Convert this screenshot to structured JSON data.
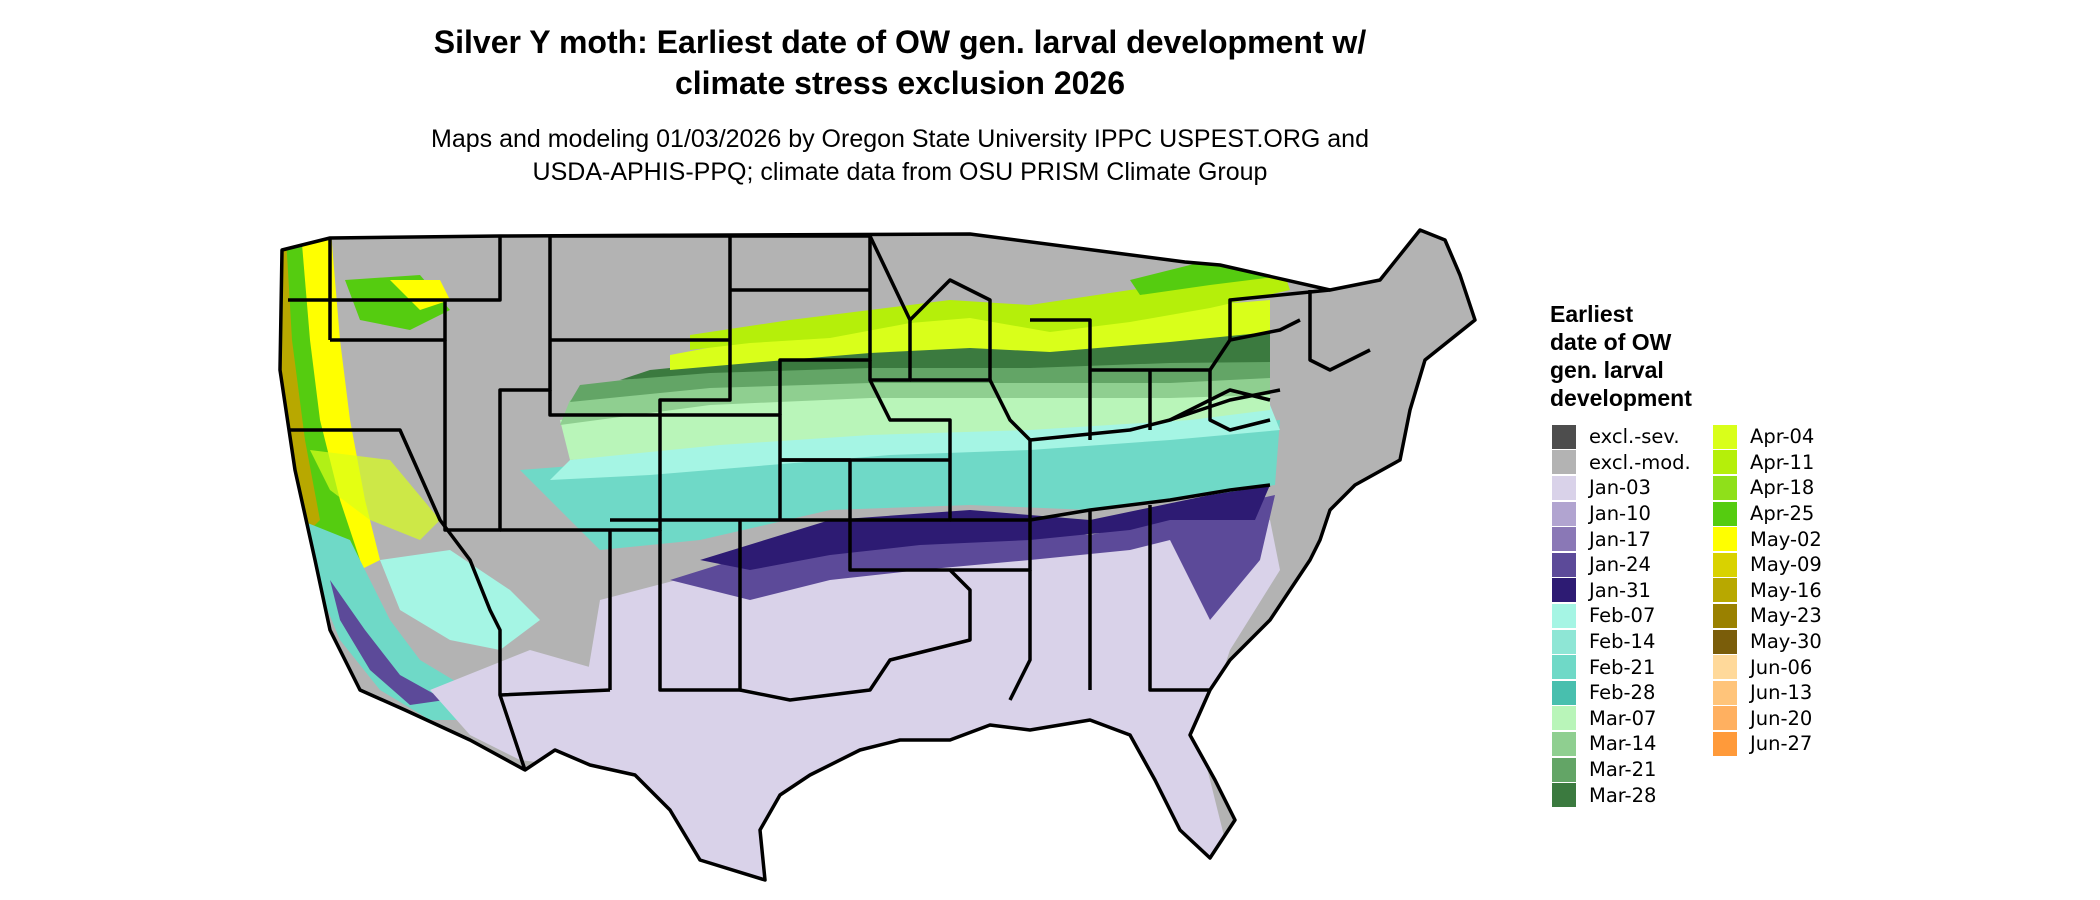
{
  "title": {
    "line1": "Silver Y moth: Earliest date of OW gen. larval development w/",
    "line2": "climate stress exclusion 2026"
  },
  "subtitle": {
    "line1": "Maps and modeling 01/03/2026 by Oregon State University IPPC USPEST.ORG and",
    "line2": "USDA-APHIS-PPQ; climate data from OSU PRISM Climate Group"
  },
  "legend": {
    "title_lines": [
      "Earliest",
      "date of OW",
      "gen. larval",
      "development"
    ],
    "items": [
      {
        "label": "excl.-sev.",
        "color": "#4d4d4d"
      },
      {
        "label": "excl.-mod.",
        "color": "#b3b3b3"
      },
      {
        "label": "Jan-03",
        "color": "#d9d2e9"
      },
      {
        "label": "Jan-10",
        "color": "#b1a4d0"
      },
      {
        "label": "Jan-17",
        "color": "#8a78b6"
      },
      {
        "label": "Jan-24",
        "color": "#5c4a99"
      },
      {
        "label": "Jan-31",
        "color": "#2d1b73"
      },
      {
        "label": "Feb-07",
        "color": "#a5f5e4"
      },
      {
        "label": "Feb-14",
        "color": "#8ee6d5"
      },
      {
        "label": "Feb-21",
        "color": "#6fd9c7"
      },
      {
        "label": "Feb-28",
        "color": "#48bfae"
      },
      {
        "label": "Mar-07",
        "color": "#b9f5b9"
      },
      {
        "label": "Mar-14",
        "color": "#8fcf90"
      },
      {
        "label": "Mar-21",
        "color": "#63a566"
      },
      {
        "label": "Mar-28",
        "color": "#3b7a3f"
      },
      {
        "label": "Apr-04",
        "color": "#d9ff1a"
      },
      {
        "label": "Apr-11",
        "color": "#b5ef0a"
      },
      {
        "label": "Apr-18",
        "color": "#8fe01a"
      },
      {
        "label": "Apr-25",
        "color": "#55cc10"
      },
      {
        "label": "May-02",
        "color": "#ffff00"
      },
      {
        "label": "May-09",
        "color": "#d9d200"
      },
      {
        "label": "May-16",
        "color": "#b8a800"
      },
      {
        "label": "May-23",
        "color": "#9a8100"
      },
      {
        "label": "May-30",
        "color": "#7a5d0a"
      },
      {
        "label": "Jun-06",
        "color": "#ffd99a"
      },
      {
        "label": "Jun-13",
        "color": "#ffc47a"
      },
      {
        "label": "Jun-20",
        "color": "#ffb060"
      },
      {
        "label": "Jun-27",
        "color": "#ff9a3a"
      }
    ]
  },
  "map": {
    "land_excluded_color": "#b3b3b3",
    "border_color": "#000000",
    "zones": [
      {
        "label": "Jan-03",
        "color": "#d9d2e9"
      },
      {
        "label": "Jan-24",
        "color": "#5c4a99"
      },
      {
        "label": "Jan-31",
        "color": "#2d1b73"
      },
      {
        "label": "Feb-21",
        "color": "#6fd9c7"
      },
      {
        "label": "Feb-07",
        "color": "#a5f5e4"
      },
      {
        "label": "Mar-07",
        "color": "#b9f5b9"
      },
      {
        "label": "Mar-14",
        "color": "#8fcf90"
      },
      {
        "label": "Mar-21",
        "color": "#63a566"
      },
      {
        "label": "Mar-28",
        "color": "#3b7a3f"
      },
      {
        "label": "Apr-04",
        "color": "#d9ff1a"
      },
      {
        "label": "Apr-11",
        "color": "#b5ef0a"
      },
      {
        "label": "May-02",
        "color": "#ffff00"
      },
      {
        "label": "Apr-25",
        "color": "#55cc10"
      }
    ]
  }
}
